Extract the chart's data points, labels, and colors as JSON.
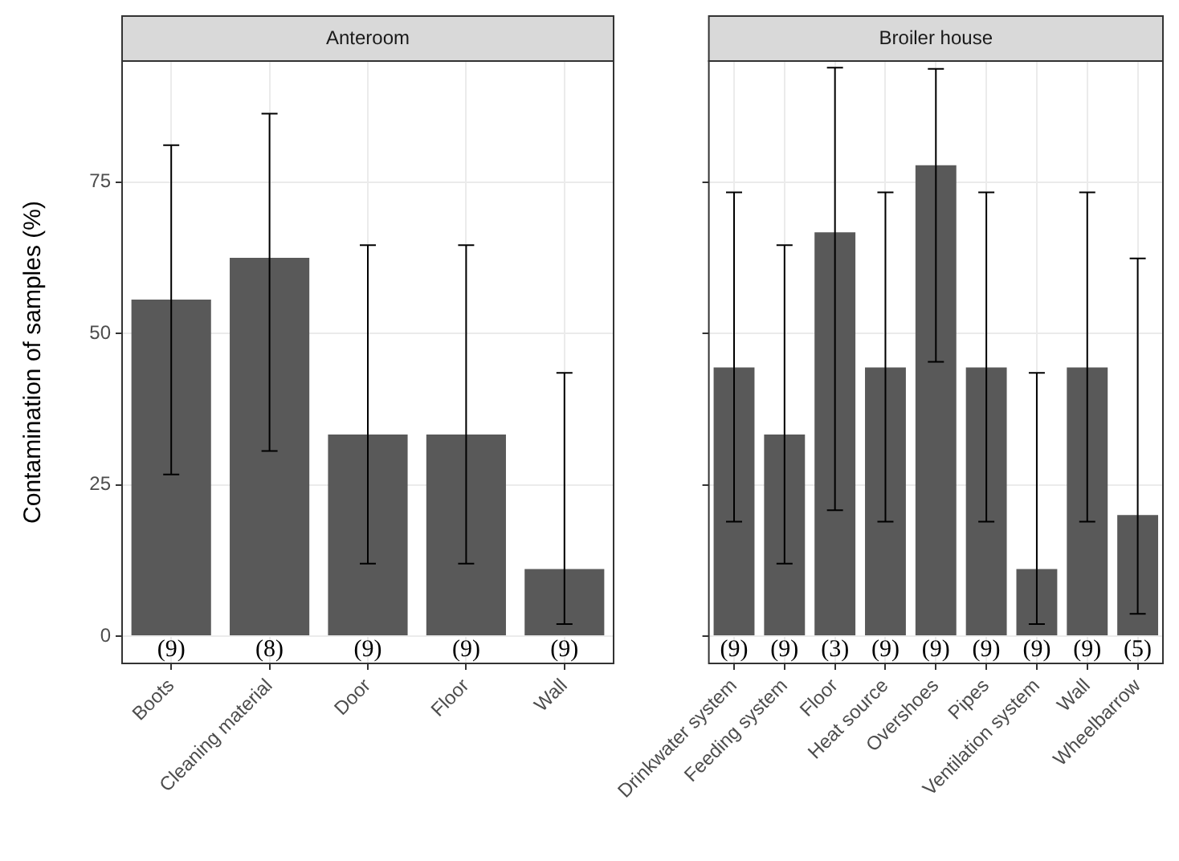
{
  "chart_data": [
    {
      "type": "bar",
      "title": "Anteroom",
      "ylabel": "Contamination of samples (%)",
      "categories": [
        "Boots",
        "Cleaning material",
        "Door",
        "Floor",
        "Wall"
      ],
      "values": [
        55.6,
        62.5,
        33.3,
        33.3,
        11.1
      ],
      "errors": [
        [
          26.7,
          81.1
        ],
        [
          30.6,
          86.3
        ],
        [
          12.0,
          64.6
        ],
        [
          12.0,
          64.6
        ],
        [
          2.0,
          43.5
        ]
      ],
      "annotations": [
        "(9)",
        "(8)",
        "(9)",
        "(9)",
        "(9)"
      ],
      "color": "#595959",
      "ylim": [
        -4.5,
        95
      ],
      "yticks": [
        0,
        25,
        50,
        75
      ],
      "grid": true,
      "legend": false
    },
    {
      "type": "bar",
      "title": "Broiler house",
      "categories": [
        "Drinkwater system",
        "Feeding system",
        "Floor",
        "Heat source",
        "Overshoes",
        "Pipes",
        "Ventilation system",
        "Wall",
        "Wheelbarrow"
      ],
      "values": [
        44.4,
        33.3,
        66.7,
        44.4,
        77.8,
        44.4,
        11.1,
        44.4,
        20.0
      ],
      "errors": [
        [
          18.9,
          73.3
        ],
        [
          12.0,
          64.6
        ],
        [
          20.8,
          93.9
        ],
        [
          18.9,
          73.3
        ],
        [
          45.3,
          93.7
        ],
        [
          18.9,
          73.3
        ],
        [
          2.0,
          43.5
        ],
        [
          18.9,
          73.3
        ],
        [
          3.7,
          62.4
        ]
      ],
      "annotations": [
        "(9)",
        "(9)",
        "(3)",
        "(9)",
        "(9)",
        "(9)",
        "(9)",
        "(9)",
        "(5)"
      ],
      "color": "#595959",
      "ylim": [
        -4.5,
        95
      ],
      "yticks": [
        0,
        25,
        50,
        75
      ],
      "grid": true,
      "legend": false,
      "tick_labels": "x"
    }
  ]
}
